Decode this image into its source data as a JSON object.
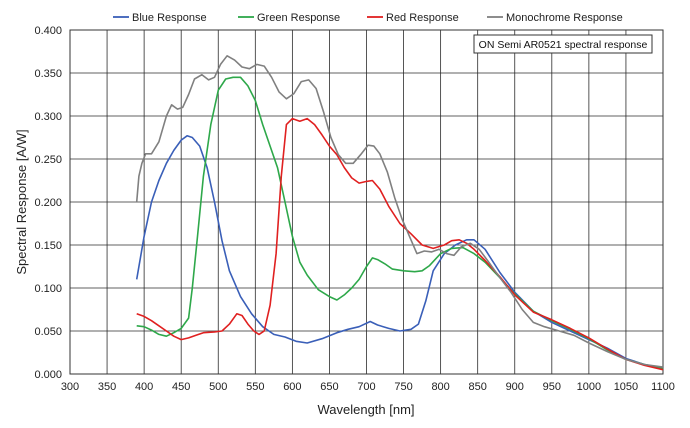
{
  "chart_data": {
    "type": "line",
    "xlabel": "Wavelength [nm]",
    "ylabel": "Spectral Response [A/W]",
    "xlim": [
      300,
      1100
    ],
    "ylim": [
      0,
      0.4
    ],
    "xticks": [
      "300",
      "350",
      "400",
      "450",
      "500",
      "550",
      "600",
      "650",
      "700",
      "750",
      "800",
      "850",
      "900",
      "950",
      "1000",
      "1050",
      "1100"
    ],
    "yticks": [
      "0.000",
      "0.050",
      "0.100",
      "0.150",
      "0.200",
      "0.250",
      "0.300",
      "0.350",
      "0.400"
    ],
    "grid": true,
    "legend_position": "top",
    "annotation": "ON Semi AR0521 spectral response",
    "series": [
      {
        "name": "Blue Response",
        "color": "#3a5fb8",
        "points": [
          [
            390,
            0.11
          ],
          [
            400,
            0.16
          ],
          [
            410,
            0.2
          ],
          [
            420,
            0.225
          ],
          [
            430,
            0.245
          ],
          [
            440,
            0.26
          ],
          [
            450,
            0.272
          ],
          [
            458,
            0.277
          ],
          [
            465,
            0.275
          ],
          [
            475,
            0.265
          ],
          [
            485,
            0.24
          ],
          [
            495,
            0.2
          ],
          [
            505,
            0.155
          ],
          [
            515,
            0.12
          ],
          [
            530,
            0.09
          ],
          [
            545,
            0.07
          ],
          [
            560,
            0.055
          ],
          [
            575,
            0.046
          ],
          [
            590,
            0.043
          ],
          [
            605,
            0.038
          ],
          [
            620,
            0.036
          ],
          [
            640,
            0.041
          ],
          [
            660,
            0.048
          ],
          [
            675,
            0.052
          ],
          [
            690,
            0.055
          ],
          [
            705,
            0.061
          ],
          [
            715,
            0.057
          ],
          [
            730,
            0.053
          ],
          [
            745,
            0.05
          ],
          [
            760,
            0.052
          ],
          [
            770,
            0.058
          ],
          [
            780,
            0.085
          ],
          [
            790,
            0.12
          ],
          [
            805,
            0.14
          ],
          [
            820,
            0.15
          ],
          [
            835,
            0.156
          ],
          [
            845,
            0.156
          ],
          [
            860,
            0.145
          ],
          [
            880,
            0.118
          ],
          [
            900,
            0.095
          ],
          [
            925,
            0.073
          ],
          [
            950,
            0.06
          ],
          [
            975,
            0.05
          ],
          [
            1000,
            0.04
          ],
          [
            1025,
            0.03
          ],
          [
            1050,
            0.018
          ],
          [
            1075,
            0.011
          ],
          [
            1100,
            0.007
          ]
        ]
      },
      {
        "name": "Green Response",
        "color": "#2ea84a",
        "points": [
          [
            390,
            0.056
          ],
          [
            400,
            0.055
          ],
          [
            410,
            0.051
          ],
          [
            420,
            0.046
          ],
          [
            430,
            0.044
          ],
          [
            440,
            0.048
          ],
          [
            450,
            0.053
          ],
          [
            460,
            0.065
          ],
          [
            465,
            0.1
          ],
          [
            472,
            0.16
          ],
          [
            480,
            0.23
          ],
          [
            490,
            0.29
          ],
          [
            500,
            0.33
          ],
          [
            510,
            0.343
          ],
          [
            520,
            0.345
          ],
          [
            530,
            0.345
          ],
          [
            540,
            0.335
          ],
          [
            550,
            0.318
          ],
          [
            560,
            0.29
          ],
          [
            570,
            0.265
          ],
          [
            580,
            0.24
          ],
          [
            590,
            0.2
          ],
          [
            600,
            0.16
          ],
          [
            610,
            0.13
          ],
          [
            620,
            0.115
          ],
          [
            635,
            0.098
          ],
          [
            650,
            0.09
          ],
          [
            660,
            0.086
          ],
          [
            670,
            0.092
          ],
          [
            680,
            0.1
          ],
          [
            690,
            0.11
          ],
          [
            700,
            0.125
          ],
          [
            708,
            0.135
          ],
          [
            715,
            0.133
          ],
          [
            725,
            0.128
          ],
          [
            735,
            0.122
          ],
          [
            750,
            0.12
          ],
          [
            765,
            0.119
          ],
          [
            775,
            0.12
          ],
          [
            785,
            0.126
          ],
          [
            800,
            0.14
          ],
          [
            815,
            0.146
          ],
          [
            830,
            0.147
          ],
          [
            845,
            0.14
          ],
          [
            860,
            0.13
          ],
          [
            880,
            0.112
          ],
          [
            900,
            0.093
          ],
          [
            925,
            0.073
          ],
          [
            950,
            0.062
          ],
          [
            975,
            0.052
          ],
          [
            1000,
            0.041
          ],
          [
            1025,
            0.028
          ],
          [
            1050,
            0.017
          ],
          [
            1075,
            0.011
          ],
          [
            1100,
            0.006
          ]
        ]
      },
      {
        "name": "Red Response",
        "color": "#e02020",
        "points": [
          [
            390,
            0.07
          ],
          [
            400,
            0.067
          ],
          [
            410,
            0.062
          ],
          [
            420,
            0.056
          ],
          [
            430,
            0.05
          ],
          [
            440,
            0.044
          ],
          [
            450,
            0.04
          ],
          [
            460,
            0.042
          ],
          [
            470,
            0.045
          ],
          [
            480,
            0.048
          ],
          [
            495,
            0.049
          ],
          [
            505,
            0.05
          ],
          [
            515,
            0.058
          ],
          [
            525,
            0.07
          ],
          [
            532,
            0.068
          ],
          [
            540,
            0.058
          ],
          [
            548,
            0.05
          ],
          [
            555,
            0.046
          ],
          [
            562,
            0.05
          ],
          [
            570,
            0.08
          ],
          [
            578,
            0.14
          ],
          [
            585,
            0.23
          ],
          [
            592,
            0.29
          ],
          [
            600,
            0.297
          ],
          [
            610,
            0.294
          ],
          [
            620,
            0.297
          ],
          [
            630,
            0.29
          ],
          [
            640,
            0.278
          ],
          [
            650,
            0.265
          ],
          [
            660,
            0.255
          ],
          [
            670,
            0.24
          ],
          [
            680,
            0.228
          ],
          [
            690,
            0.222
          ],
          [
            700,
            0.224
          ],
          [
            708,
            0.225
          ],
          [
            718,
            0.215
          ],
          [
            730,
            0.195
          ],
          [
            745,
            0.175
          ],
          [
            760,
            0.163
          ],
          [
            775,
            0.15
          ],
          [
            790,
            0.146
          ],
          [
            805,
            0.15
          ],
          [
            815,
            0.155
          ],
          [
            825,
            0.156
          ],
          [
            835,
            0.152
          ],
          [
            845,
            0.145
          ],
          [
            860,
            0.132
          ],
          [
            880,
            0.113
          ],
          [
            900,
            0.092
          ],
          [
            925,
            0.072
          ],
          [
            950,
            0.063
          ],
          [
            975,
            0.053
          ],
          [
            1000,
            0.042
          ],
          [
            1025,
            0.029
          ],
          [
            1050,
            0.017
          ],
          [
            1075,
            0.01
          ],
          [
            1100,
            0.005
          ]
        ]
      },
      {
        "name": "Monochrome Response",
        "color": "#808080",
        "points": [
          [
            390,
            0.2
          ],
          [
            393,
            0.23
          ],
          [
            397,
            0.245
          ],
          [
            402,
            0.256
          ],
          [
            410,
            0.256
          ],
          [
            420,
            0.27
          ],
          [
            430,
            0.3
          ],
          [
            437,
            0.313
          ],
          [
            445,
            0.308
          ],
          [
            452,
            0.31
          ],
          [
            460,
            0.325
          ],
          [
            468,
            0.343
          ],
          [
            478,
            0.348
          ],
          [
            487,
            0.342
          ],
          [
            495,
            0.345
          ],
          [
            503,
            0.36
          ],
          [
            512,
            0.37
          ],
          [
            522,
            0.365
          ],
          [
            532,
            0.357
          ],
          [
            542,
            0.355
          ],
          [
            552,
            0.36
          ],
          [
            562,
            0.358
          ],
          [
            572,
            0.345
          ],
          [
            582,
            0.328
          ],
          [
            592,
            0.32
          ],
          [
            602,
            0.326
          ],
          [
            612,
            0.34
          ],
          [
            622,
            0.342
          ],
          [
            632,
            0.332
          ],
          [
            642,
            0.305
          ],
          [
            652,
            0.275
          ],
          [
            662,
            0.255
          ],
          [
            672,
            0.245
          ],
          [
            682,
            0.245
          ],
          [
            692,
            0.255
          ],
          [
            702,
            0.266
          ],
          [
            710,
            0.265
          ],
          [
            718,
            0.256
          ],
          [
            728,
            0.235
          ],
          [
            738,
            0.205
          ],
          [
            748,
            0.18
          ],
          [
            758,
            0.16
          ],
          [
            768,
            0.14
          ],
          [
            778,
            0.143
          ],
          [
            788,
            0.142
          ],
          [
            798,
            0.145
          ],
          [
            808,
            0.14
          ],
          [
            818,
            0.138
          ],
          [
            828,
            0.148
          ],
          [
            840,
            0.152
          ],
          [
            852,
            0.145
          ],
          [
            865,
            0.13
          ],
          [
            880,
            0.112
          ],
          [
            895,
            0.095
          ],
          [
            910,
            0.075
          ],
          [
            925,
            0.06
          ],
          [
            940,
            0.055
          ],
          [
            960,
            0.05
          ],
          [
            980,
            0.045
          ],
          [
            1000,
            0.036
          ],
          [
            1025,
            0.026
          ],
          [
            1050,
            0.017
          ],
          [
            1075,
            0.011
          ],
          [
            1100,
            0.008
          ]
        ]
      }
    ]
  }
}
